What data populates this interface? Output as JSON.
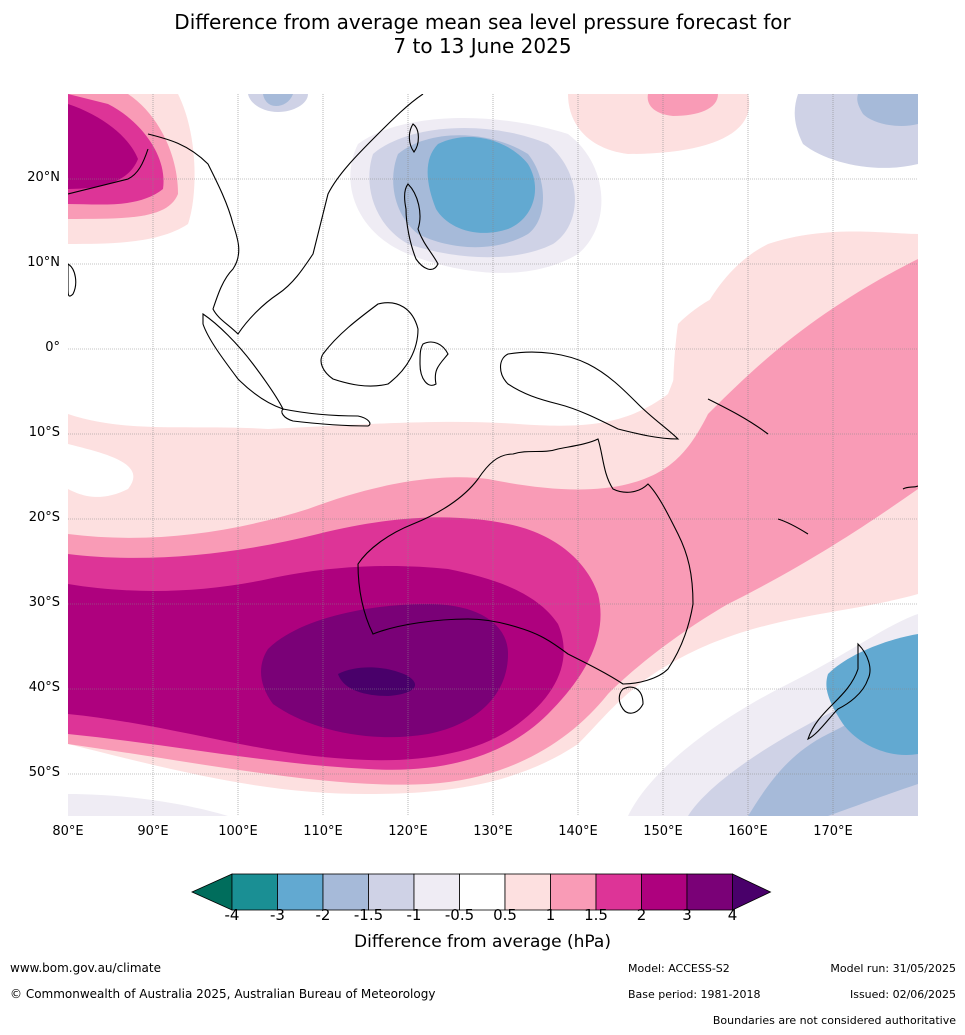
{
  "title_line1": "Difference from average mean sea level pressure forecast for",
  "title_line2": "7 to 13 June 2025",
  "lat_labels": [
    "20°N",
    "10°N",
    "0°",
    "10°S",
    "20°S",
    "30°S",
    "40°S",
    "50°S"
  ],
  "lon_labels": [
    "80°E",
    "90°E",
    "100°E",
    "110°E",
    "120°E",
    "130°E",
    "140°E",
    "150°E",
    "160°E",
    "170°E"
  ],
  "colorbar": {
    "ticks": [
      "-4",
      "-3",
      "-2",
      "-1.5",
      "-1",
      "-0.5",
      "0.5",
      "1",
      "1.5",
      "2",
      "3",
      "4"
    ],
    "colors": [
      "#1a8f94",
      "#62a9d1",
      "#a6bad9",
      "#cfd2e6",
      "#efecf4",
      "#ffffff",
      "#fde0e0",
      "#f99bb6",
      "#dd3497",
      "#ae017e",
      "#7a0177"
    ],
    "under_color": "#006d5c",
    "over_color": "#49006a",
    "label": "Difference from average (hPa)"
  },
  "footer": {
    "website": "www.bom.gov.au/climate",
    "copyright": "© Commonwealth of Australia 2025, Australian Bureau of Meteorology",
    "model": "Model: ACCESS-S2",
    "base_period": "Base period: 1981-2018",
    "model_run": "Model run: 31/05/2025",
    "issued": "Issued: 02/06/2025",
    "disclaimer": "Boundaries are not considered authoritative"
  }
}
